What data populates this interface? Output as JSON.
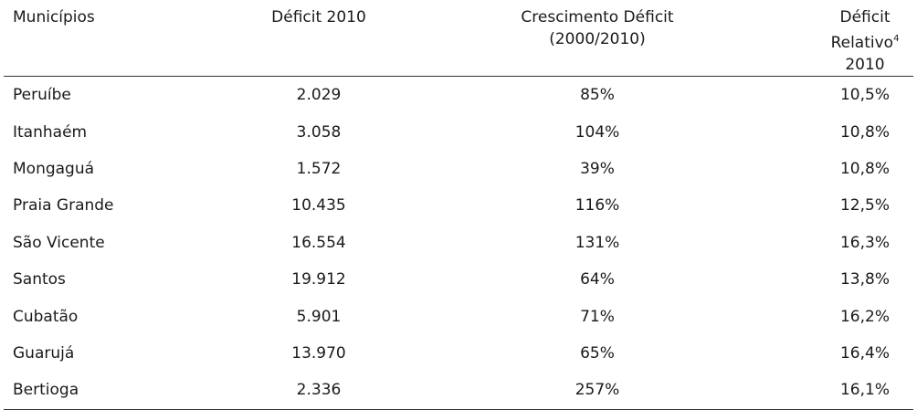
{
  "table": {
    "headers": {
      "col0": "Municípios",
      "col1": "Déficit 2010",
      "col2_line1": "Crescimento Déficit",
      "col2_line2": "(2000/2010)",
      "col3_line1": "Déficit Relativo",
      "col3_sup": "4",
      "col3_line2": "2010"
    },
    "rows": [
      {
        "municipio": "Peruíbe",
        "deficit": "2.029",
        "crescimento": "85%",
        "relativo": "10,5%"
      },
      {
        "municipio": "Itanhaém",
        "deficit": "3.058",
        "crescimento": "104%",
        "relativo": "10,8%"
      },
      {
        "municipio": "Mongaguá",
        "deficit": "1.572",
        "crescimento": "39%",
        "relativo": "10,8%"
      },
      {
        "municipio": "Praia Grande",
        "deficit": "10.435",
        "crescimento": "116%",
        "relativo": "12,5%"
      },
      {
        "municipio": "São Vicente",
        "deficit": "16.554",
        "crescimento": "131%",
        "relativo": "16,3%"
      },
      {
        "municipio": "Santos",
        "deficit": "19.912",
        "crescimento": "64%",
        "relativo": "13,8%"
      },
      {
        "municipio": "Cubatão",
        "deficit": "5.901",
        "crescimento": "71%",
        "relativo": "16,2%"
      },
      {
        "municipio": "Guarujá",
        "deficit": "13.970",
        "crescimento": "65%",
        "relativo": "16,4%"
      },
      {
        "municipio": "Bertioga",
        "deficit": "2.336",
        "crescimento": "257%",
        "relativo": "16,1%"
      }
    ]
  }
}
